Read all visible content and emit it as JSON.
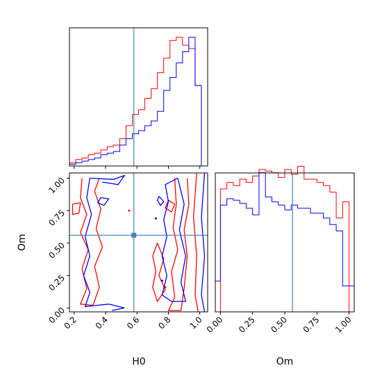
{
  "chart_data": [
    {
      "type": "histogram",
      "panel": "H0-marginal",
      "xlim": [
        0.17,
        1.05
      ],
      "x_ticks": [
        0.2,
        0.4,
        0.6,
        0.8,
        1.0
      ],
      "truth": 0.58,
      "bins": [
        0.17,
        0.21,
        0.25,
        0.29,
        0.33,
        0.37,
        0.41,
        0.45,
        0.49,
        0.53,
        0.57,
        0.61,
        0.65,
        0.69,
        0.73,
        0.77,
        0.81,
        0.85,
        0.89,
        0.93,
        0.97,
        1.01,
        1.05
      ],
      "series": [
        {
          "color": "#ff0000",
          "values": [
            0.02,
            0.04,
            0.05,
            0.07,
            0.08,
            0.1,
            0.12,
            0.13,
            0.17,
            0.25,
            0.32,
            0.35,
            0.42,
            0.48,
            0.58,
            0.67,
            0.78,
            0.8,
            0.75,
            0.73,
            0.5,
            0.0
          ]
        },
        {
          "color": "#0000ff",
          "values": [
            0.01,
            0.02,
            0.03,
            0.04,
            0.05,
            0.07,
            0.08,
            0.09,
            0.13,
            0.17,
            0.2,
            0.22,
            0.25,
            0.28,
            0.34,
            0.47,
            0.55,
            0.64,
            0.71,
            0.8,
            0.5,
            0.0
          ]
        }
      ]
    },
    {
      "type": "contour",
      "panel": "H0-vs-Om",
      "xlim": [
        0.17,
        1.05
      ],
      "ylim": [
        -0.03,
        1.04
      ],
      "x_ticks": [
        0.2,
        0.4,
        0.6,
        0.8,
        1.0
      ],
      "y_ticks": [
        0.0,
        0.25,
        0.5,
        0.75,
        1.0
      ],
      "x_tick_labels": [
        "0.2",
        "0.4",
        "0.6",
        "0.8",
        "1.0"
      ],
      "y_tick_labels": [
        "0.00",
        "0.25",
        "0.50",
        "0.75",
        "1.00"
      ],
      "xlabel": "H0",
      "ylabel": "Om",
      "truth": {
        "x": 0.58,
        "y": 0.56
      },
      "series": [
        {
          "color": "#ff0000",
          "contours": [
            [
              [
                0.25,
                1.0
              ],
              [
                0.24,
                0.85
              ],
              [
                0.28,
                0.72
              ],
              [
                0.24,
                0.58
              ],
              [
                0.29,
                0.45
              ],
              [
                0.25,
                0.3
              ],
              [
                0.28,
                0.15
              ],
              [
                0.24,
                0.03
              ],
              [
                0.32,
                0.02
              ],
              [
                0.36,
                0.16
              ],
              [
                0.33,
                0.32
              ],
              [
                0.38,
                0.47
              ],
              [
                0.34,
                0.61
              ],
              [
                0.37,
                0.76
              ],
              [
                0.33,
                0.9
              ],
              [
                0.36,
                1.0
              ]
            ],
            [
              [
                0.19,
                0.8
              ],
              [
                0.24,
                0.81
              ],
              [
                0.23,
                0.73
              ],
              [
                0.19,
                0.72
              ],
              [
                0.19,
                0.8
              ]
            ],
            [
              [
                0.84,
                1.0
              ],
              [
                0.85,
                0.8
              ],
              [
                0.83,
                0.62
              ],
              [
                0.86,
                0.45
              ],
              [
                0.82,
                0.28
              ],
              [
                0.84,
                0.08
              ],
              [
                0.8,
                -0.02
              ],
              [
                0.88,
                -0.02
              ],
              [
                0.9,
                0.15
              ],
              [
                0.92,
                0.4
              ],
              [
                0.9,
                0.6
              ],
              [
                0.93,
                0.8
              ],
              [
                0.92,
                1.0
              ]
            ],
            [
              [
                0.73,
                0.5
              ],
              [
                0.77,
                0.38
              ],
              [
                0.74,
                0.25
              ],
              [
                0.78,
                0.14
              ],
              [
                0.73,
                0.05
              ],
              [
                0.7,
                0.16
              ],
              [
                0.72,
                0.28
              ],
              [
                0.7,
                0.4
              ],
              [
                0.73,
                0.5
              ]
            ],
            [
              [
                0.98,
                1.04
              ],
              [
                0.96,
                0.7
              ],
              [
                0.98,
                0.4
              ],
              [
                0.97,
                0.1
              ],
              [
                0.99,
                -0.03
              ]
            ],
            [
              [
                0.8,
                0.83
              ],
              [
                0.84,
                0.8
              ],
              [
                0.82,
                0.74
              ],
              [
                0.78,
                0.77
              ],
              [
                0.8,
                0.83
              ]
            ]
          ],
          "points": [
            [
              0.55,
              0.75
            ],
            [
              0.78,
              0.16
            ]
          ]
        },
        {
          "color": "#0000ff",
          "contours": [
            [
              [
                0.3,
                1.0
              ],
              [
                0.28,
                0.85
              ],
              [
                0.31,
                0.72
              ],
              [
                0.27,
                0.55
              ],
              [
                0.3,
                0.4
              ],
              [
                0.26,
                0.25
              ],
              [
                0.3,
                0.12
              ],
              [
                0.27,
                0.01
              ],
              [
                0.42,
                0.03
              ],
              [
                0.52,
                0.0
              ],
              [
                0.44,
                -0.02
              ]
            ],
            [
              [
                0.3,
                1.0
              ],
              [
                0.45,
                0.99
              ],
              [
                0.52,
                1.02
              ],
              [
                0.48,
                0.95
              ],
              [
                0.38,
                0.97
              ]
            ],
            [
              [
                0.37,
                0.85
              ],
              [
                0.42,
                0.84
              ],
              [
                0.39,
                0.79
              ],
              [
                0.35,
                0.81
              ],
              [
                0.37,
                0.85
              ]
            ],
            [
              [
                0.86,
                1.0
              ],
              [
                0.9,
                0.8
              ],
              [
                0.87,
                0.6
              ],
              [
                0.91,
                0.4
              ],
              [
                0.88,
                0.2
              ],
              [
                0.91,
                0.05
              ],
              [
                0.82,
                0.05
              ],
              [
                0.76,
                0.1
              ],
              [
                0.79,
                0.25
              ],
              [
                0.76,
                0.4
              ],
              [
                0.79,
                0.55
              ],
              [
                0.77,
                0.68
              ],
              [
                0.8,
                0.82
              ],
              [
                0.78,
                0.95
              ],
              [
                0.86,
                1.0
              ]
            ],
            [
              [
                0.74,
                0.86
              ],
              [
                0.77,
                0.82
              ],
              [
                0.75,
                0.79
              ],
              [
                0.73,
                0.83
              ],
              [
                0.74,
                0.86
              ]
            ],
            [
              [
                1.03,
                1.04
              ],
              [
                1.01,
                0.7
              ],
              [
                1.03,
                0.4
              ],
              [
                1.01,
                0.1
              ],
              [
                1.03,
                -0.03
              ]
            ]
          ],
          "points": [
            [
              0.72,
              0.69
            ],
            [
              0.76,
              0.21
            ]
          ]
        }
      ]
    },
    {
      "type": "histogram",
      "panel": "Om-marginal",
      "xlim": [
        -0.04,
        1.04
      ],
      "x_ticks": [
        0.0,
        0.25,
        0.5,
        0.75,
        1.0
      ],
      "x_tick_labels": [
        "0.00",
        "0.25",
        "0.50",
        "0.75",
        "1.00"
      ],
      "xlabel": "Om",
      "truth": 0.56,
      "bins": [
        -0.04,
        0.0,
        0.05,
        0.1,
        0.15,
        0.2,
        0.25,
        0.3,
        0.35,
        0.4,
        0.45,
        0.5,
        0.55,
        0.6,
        0.65,
        0.7,
        0.75,
        0.8,
        0.85,
        0.9,
        0.95,
        1.0,
        1.04
      ],
      "series": [
        {
          "color": "#ff0000",
          "values": [
            0.0,
            0.76,
            0.8,
            0.78,
            0.82,
            0.8,
            0.84,
            0.88,
            0.87,
            0.86,
            0.83,
            0.88,
            0.85,
            0.9,
            0.82,
            0.82,
            0.8,
            0.78,
            0.74,
            0.58,
            0.68,
            0.0
          ]
        },
        {
          "color": "#0000ff",
          "values": [
            0.19,
            0.66,
            0.7,
            0.69,
            0.67,
            0.64,
            0.6,
            0.86,
            0.71,
            0.68,
            0.66,
            0.63,
            0.66,
            0.64,
            0.64,
            0.61,
            0.61,
            0.58,
            0.54,
            0.5,
            0.16,
            0.16
          ]
        }
      ]
    }
  ]
}
